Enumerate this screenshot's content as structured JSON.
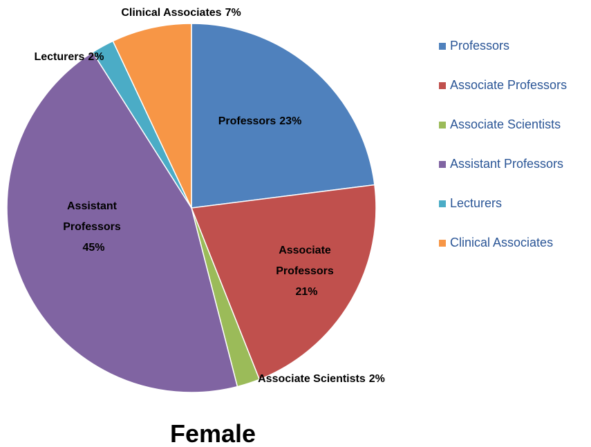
{
  "chart_data": {
    "type": "pie",
    "title": "Female",
    "categories": [
      "Professors",
      "Associate Professors",
      "Associate Scientists",
      "Assistant Professors",
      "Lecturers",
      "Clinical Associates"
    ],
    "values": [
      23,
      21,
      2,
      45,
      2,
      7
    ],
    "value_labels": [
      "23%",
      "21%",
      "2%",
      "45%",
      "2%",
      "7%"
    ],
    "colors": [
      "#4f81bd",
      "#c0504d",
      "#9bbb59",
      "#8064a2",
      "#4bacc6",
      "#f79646"
    ],
    "legend": "right"
  }
}
